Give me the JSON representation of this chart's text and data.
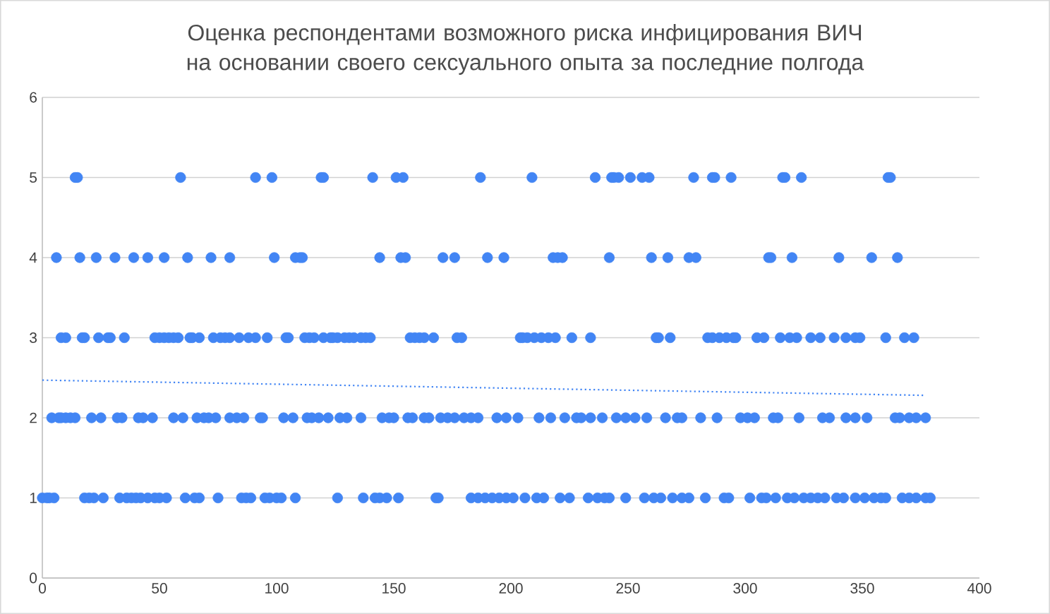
{
  "chart_data": {
    "type": "scatter",
    "title": "Оценка респондентами возможного риска инфицирования ВИЧ на основании своего сексуального опыта за последние полгода",
    "xlim": [
      0,
      400
    ],
    "xticks": [
      0,
      50,
      100,
      150,
      200,
      250,
      300,
      350,
      400
    ],
    "ylim": [
      0,
      6
    ],
    "yticks": [
      0,
      1,
      2,
      3,
      4,
      5,
      6
    ],
    "grid": "y",
    "series": [
      {
        "color": "#4285f4",
        "marker": "circle",
        "x": [
          14,
          15,
          59,
          91,
          98,
          119,
          120,
          141,
          151,
          154,
          187,
          209,
          236,
          243,
          244,
          246,
          251,
          256,
          259,
          278,
          286,
          287,
          294,
          316,
          317,
          324,
          361,
          362,
          6,
          16,
          23,
          31,
          39,
          45,
          52,
          62,
          72,
          80,
          99,
          108,
          110,
          111,
          144,
          153,
          155,
          171,
          176,
          190,
          197,
          218,
          220,
          222,
          242,
          260,
          267,
          276,
          279,
          310,
          311,
          320,
          340,
          354,
          365,
          8,
          10,
          17,
          18,
          24,
          28,
          29,
          35,
          48,
          50,
          52,
          54,
          56,
          58,
          63,
          64,
          67,
          73,
          76,
          78,
          80,
          84,
          88,
          91,
          96,
          104,
          105,
          112,
          114,
          116,
          120,
          123,
          124,
          126,
          129,
          131,
          133,
          136,
          138,
          140,
          157,
          159,
          161,
          163,
          167,
          177,
          179,
          204,
          205,
          207,
          210,
          213,
          216,
          219,
          226,
          234,
          262,
          263,
          268,
          284,
          286,
          289,
          292,
          295,
          296,
          305,
          308,
          315,
          319,
          322,
          328,
          332,
          338,
          343,
          347,
          349,
          360,
          368,
          372,
          4,
          7,
          8,
          10,
          12,
          14,
          21,
          25,
          32,
          34,
          41,
          43,
          47,
          56,
          60,
          66,
          69,
          71,
          74,
          80,
          83,
          86,
          93,
          94,
          103,
          107,
          113,
          115,
          118,
          122,
          127,
          130,
          136,
          145,
          148,
          150,
          156,
          158,
          163,
          165,
          170,
          173,
          176,
          180,
          183,
          186,
          194,
          198,
          203,
          212,
          217,
          223,
          228,
          230,
          234,
          239,
          245,
          249,
          253,
          258,
          266,
          271,
          273,
          281,
          288,
          298,
          301,
          304,
          312,
          314,
          323,
          333,
          336,
          343,
          347,
          352,
          364,
          366,
          370,
          373,
          377,
          0,
          2,
          3,
          5,
          18,
          20,
          22,
          26,
          33,
          36,
          38,
          40,
          42,
          45,
          48,
          50,
          53,
          61,
          65,
          67,
          75,
          85,
          87,
          89,
          95,
          97,
          100,
          102,
          108,
          126,
          137,
          142,
          144,
          147,
          152,
          168,
          169,
          183,
          186,
          189,
          192,
          195,
          198,
          201,
          206,
          211,
          214,
          221,
          225,
          233,
          237,
          240,
          242,
          249,
          257,
          261,
          264,
          269,
          273,
          276,
          283,
          291,
          293,
          302,
          307,
          309,
          313,
          318,
          321,
          325,
          328,
          331,
          334,
          339,
          342,
          347,
          351,
          355,
          358,
          360,
          367,
          370,
          373,
          377,
          379
        ],
        "values": [
          5,
          5,
          5,
          5,
          5,
          5,
          5,
          5,
          5,
          5,
          5,
          5,
          5,
          5,
          5,
          5,
          5,
          5,
          5,
          5,
          5,
          5,
          5,
          5,
          5,
          5,
          5,
          5,
          4,
          4,
          4,
          4,
          4,
          4,
          4,
          4,
          4,
          4,
          4,
          4,
          4,
          4,
          4,
          4,
          4,
          4,
          4,
          4,
          4,
          4,
          4,
          4,
          4,
          4,
          4,
          4,
          4,
          4,
          4,
          4,
          4,
          4,
          4,
          3,
          3,
          3,
          3,
          3,
          3,
          3,
          3,
          3,
          3,
          3,
          3,
          3,
          3,
          3,
          3,
          3,
          3,
          3,
          3,
          3,
          3,
          3,
          3,
          3,
          3,
          3,
          3,
          3,
          3,
          3,
          3,
          3,
          3,
          3,
          3,
          3,
          3,
          3,
          3,
          3,
          3,
          3,
          3,
          3,
          3,
          3,
          3,
          3,
          3,
          3,
          3,
          3,
          3,
          3,
          3,
          3,
          3,
          3,
          3,
          3,
          3,
          3,
          3,
          3,
          3,
          3,
          3,
          3,
          3,
          3,
          3,
          3,
          3,
          3,
          3,
          3,
          3,
          3,
          2,
          2,
          2,
          2,
          2,
          2,
          2,
          2,
          2,
          2,
          2,
          2,
          2,
          2,
          2,
          2,
          2,
          2,
          2,
          2,
          2,
          2,
          2,
          2,
          2,
          2,
          2,
          2,
          2,
          2,
          2,
          2,
          2,
          2,
          2,
          2,
          2,
          2,
          2,
          2,
          2,
          2,
          2,
          2,
          2,
          2,
          2,
          2,
          2,
          2,
          2,
          2,
          2,
          2,
          2,
          2,
          2,
          2,
          2,
          2,
          2,
          2,
          2,
          2,
          2,
          2,
          2,
          2,
          2,
          2,
          2,
          2,
          2,
          2,
          2,
          2,
          2,
          2,
          2,
          2,
          2,
          1,
          1,
          1,
          1,
          1,
          1,
          1,
          1,
          1,
          1,
          1,
          1,
          1,
          1,
          1,
          1,
          1,
          1,
          1,
          1,
          1,
          1,
          1,
          1,
          1,
          1,
          1,
          1,
          1,
          1,
          1,
          1,
          1,
          1,
          1,
          1,
          1,
          1,
          1,
          1,
          1,
          1,
          1,
          1,
          1,
          1,
          1,
          1,
          1,
          1,
          1,
          1,
          1,
          1,
          1,
          1,
          1,
          1,
          1,
          1,
          1,
          1,
          1,
          1,
          1,
          1,
          1,
          1,
          1,
          1,
          1,
          1,
          1,
          1,
          1,
          1,
          1,
          1,
          1,
          1,
          1,
          1,
          1,
          1,
          1
        ]
      },
      {
        "type": "line",
        "color": "#4285f4",
        "line_style": "dotted",
        "marker": "none",
        "x": [
          0,
          377
        ],
        "values": [
          2.47,
          2.28
        ]
      }
    ]
  }
}
